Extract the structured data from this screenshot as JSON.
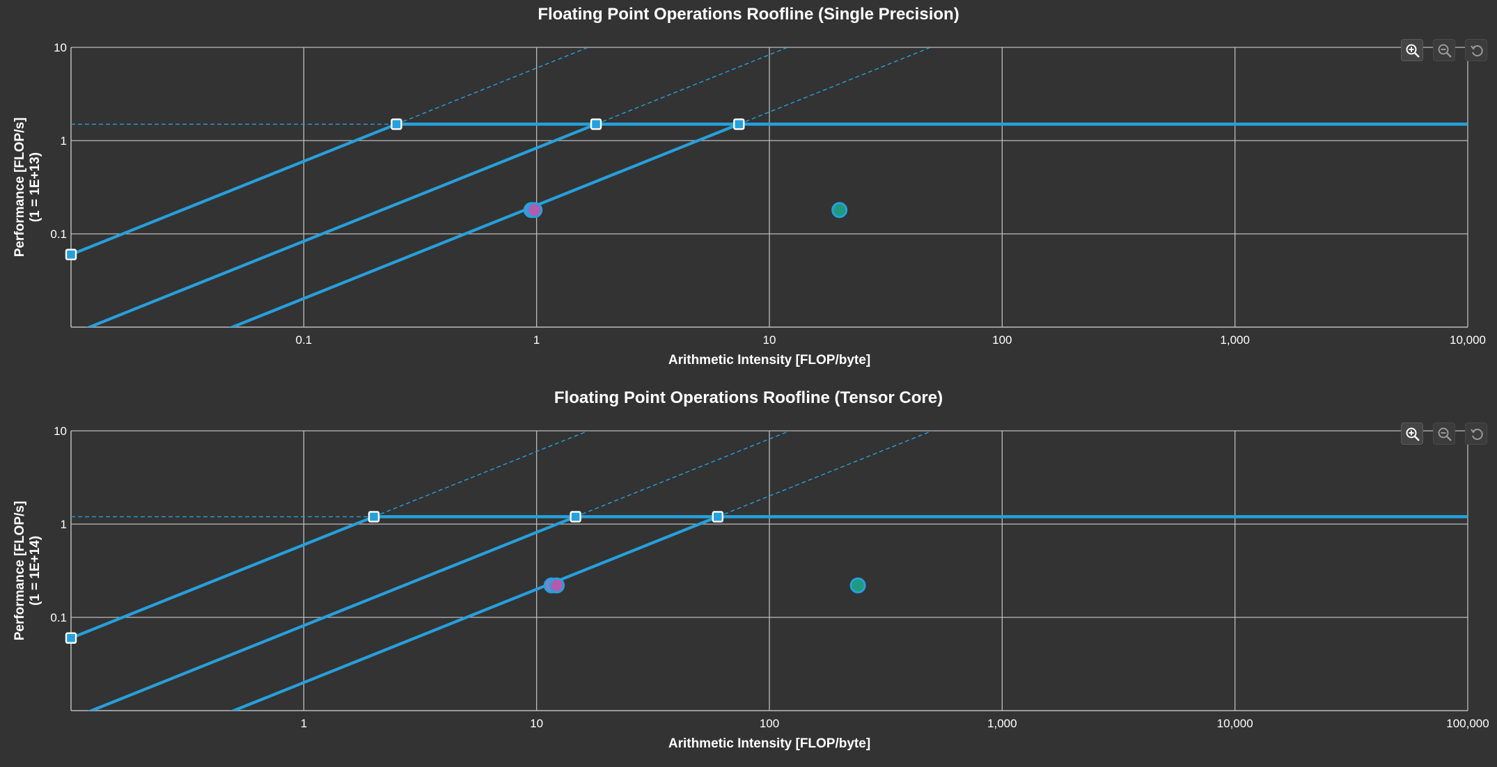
{
  "chart_data": [
    {
      "type": "scatter",
      "title": "Floating Point Operations Roofline (Single Precision)",
      "xlabel": "Arithmetic Intensity [FLOP/byte]",
      "ylabel": "Performance [FLOP/s]",
      "ylabel_scale": "(1 = 1E+13)",
      "xscale": "log",
      "yscale": "log",
      "xlim": [
        0.01,
        10000
      ],
      "ylim": [
        0.01,
        10
      ],
      "x_ticks": [
        "0.1",
        "1",
        "10",
        "100",
        "1,000",
        "10,000"
      ],
      "x_tick_values": [
        0.1,
        1,
        10,
        100,
        1000,
        10000
      ],
      "y_ticks": [
        "0.1",
        "1",
        "10"
      ],
      "y_tick_values": [
        0.1,
        1,
        10
      ],
      "grid": true,
      "peak_performance": 1.5,
      "rooflines": [
        {
          "ridge_x": 0.25,
          "ridge_y": 1.5
        },
        {
          "ridge_x": 1.8,
          "ridge_y": 1.5
        },
        {
          "ridge_x": 7.4,
          "ridge_y": 1.5
        }
      ],
      "roofline_markers": [
        {
          "x": 0.01,
          "y": 0.06
        },
        {
          "x": 0.25,
          "y": 1.5
        },
        {
          "x": 1.8,
          "y": 1.5
        },
        {
          "x": 7.4,
          "y": 1.5
        }
      ],
      "points": [
        {
          "x": 0.95,
          "y": 0.18,
          "color": "#8a7fc4",
          "ring": "#26a0dc"
        },
        {
          "x": 0.98,
          "y": 0.18,
          "color": "#b25cb0",
          "ring": "#26a0dc"
        },
        {
          "x": 20,
          "y": 0.18,
          "color": "#1e9a7e",
          "ring": "#26a0dc"
        }
      ]
    },
    {
      "type": "scatter",
      "title": "Floating Point Operations Roofline (Tensor Core)",
      "xlabel": "Arithmetic Intensity [FLOP/byte]",
      "ylabel": "Performance [FLOP/s]",
      "ylabel_scale": "(1 = 1E+14)",
      "xscale": "log",
      "yscale": "log",
      "xlim": [
        0.1,
        100000
      ],
      "ylim": [
        0.01,
        10
      ],
      "x_ticks": [
        "1",
        "10",
        "100",
        "1,000",
        "10,000",
        "100,000"
      ],
      "x_tick_values": [
        1,
        10,
        100,
        1000,
        10000,
        100000
      ],
      "y_ticks": [
        "0.1",
        "1",
        "10"
      ],
      "y_tick_values": [
        0.1,
        1,
        10
      ],
      "grid": true,
      "peak_performance": 1.2,
      "rooflines": [
        {
          "ridge_x": 2,
          "ridge_y": 1.2
        },
        {
          "ridge_x": 14.7,
          "ridge_y": 1.2
        },
        {
          "ridge_x": 60,
          "ridge_y": 1.2
        }
      ],
      "roofline_markers": [
        {
          "x": 0.1,
          "y": 0.06
        },
        {
          "x": 2,
          "y": 1.2
        },
        {
          "x": 14.7,
          "y": 1.2
        },
        {
          "x": 60,
          "y": 1.2
        }
      ],
      "points": [
        {
          "x": 11.6,
          "y": 0.22,
          "color": "#8a7fc4",
          "ring": "#26a0dc"
        },
        {
          "x": 12.2,
          "y": 0.22,
          "color": "#b25cb0",
          "ring": "#26a0dc"
        },
        {
          "x": 240,
          "y": 0.22,
          "color": "#1e9a7e",
          "ring": "#26a0dc"
        }
      ]
    }
  ],
  "zoom_controls": [
    {
      "icon": "zoom-in-icon"
    },
    {
      "icon": "zoom-out-icon"
    },
    {
      "icon": "reset-zoom-icon"
    }
  ],
  "colors": {
    "background": "#333333",
    "grid": "#bdbdbd",
    "roofline": "#26a0dc",
    "marker_fill": "#26a0dc",
    "marker_stroke": "#ffffff",
    "text": "#ffffff"
  }
}
